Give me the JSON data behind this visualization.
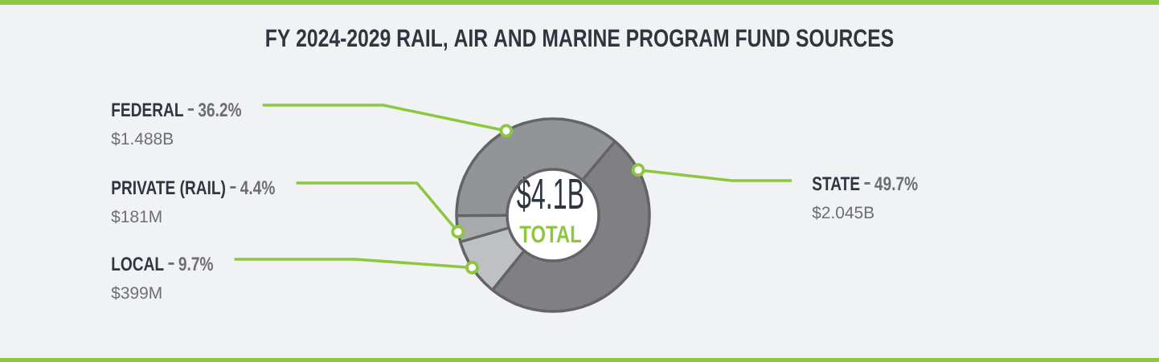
{
  "chart_data": {
    "type": "donut",
    "title": "FY 2024-2029 RAIL, AIR AND MARINE PROGRAM FUND SOURCES",
    "categories": [
      "FEDERAL",
      "PRIVATE (RAIL)",
      "LOCAL",
      "STATE"
    ],
    "values": [
      36.2,
      4.4,
      9.7,
      49.7
    ],
    "colors": [
      "#939497",
      "#a9aaad",
      "#bfc0c3",
      "#808084"
    ],
    "value_labels": [
      "36.2%",
      "4.4%",
      "9.7%",
      "49.7%"
    ],
    "annotations": [
      "$4.1B",
      "TOTAL",
      {
        "text": "$1.488B",
        "x": "FEDERAL"
      },
      {
        "text": "$181M",
        "x": "PRIVATE (RAIL)"
      },
      {
        "text": "$399M",
        "x": "LOCAL"
      },
      {
        "text": "$2.045B",
        "x": "STATE"
      }
    ]
  }
}
